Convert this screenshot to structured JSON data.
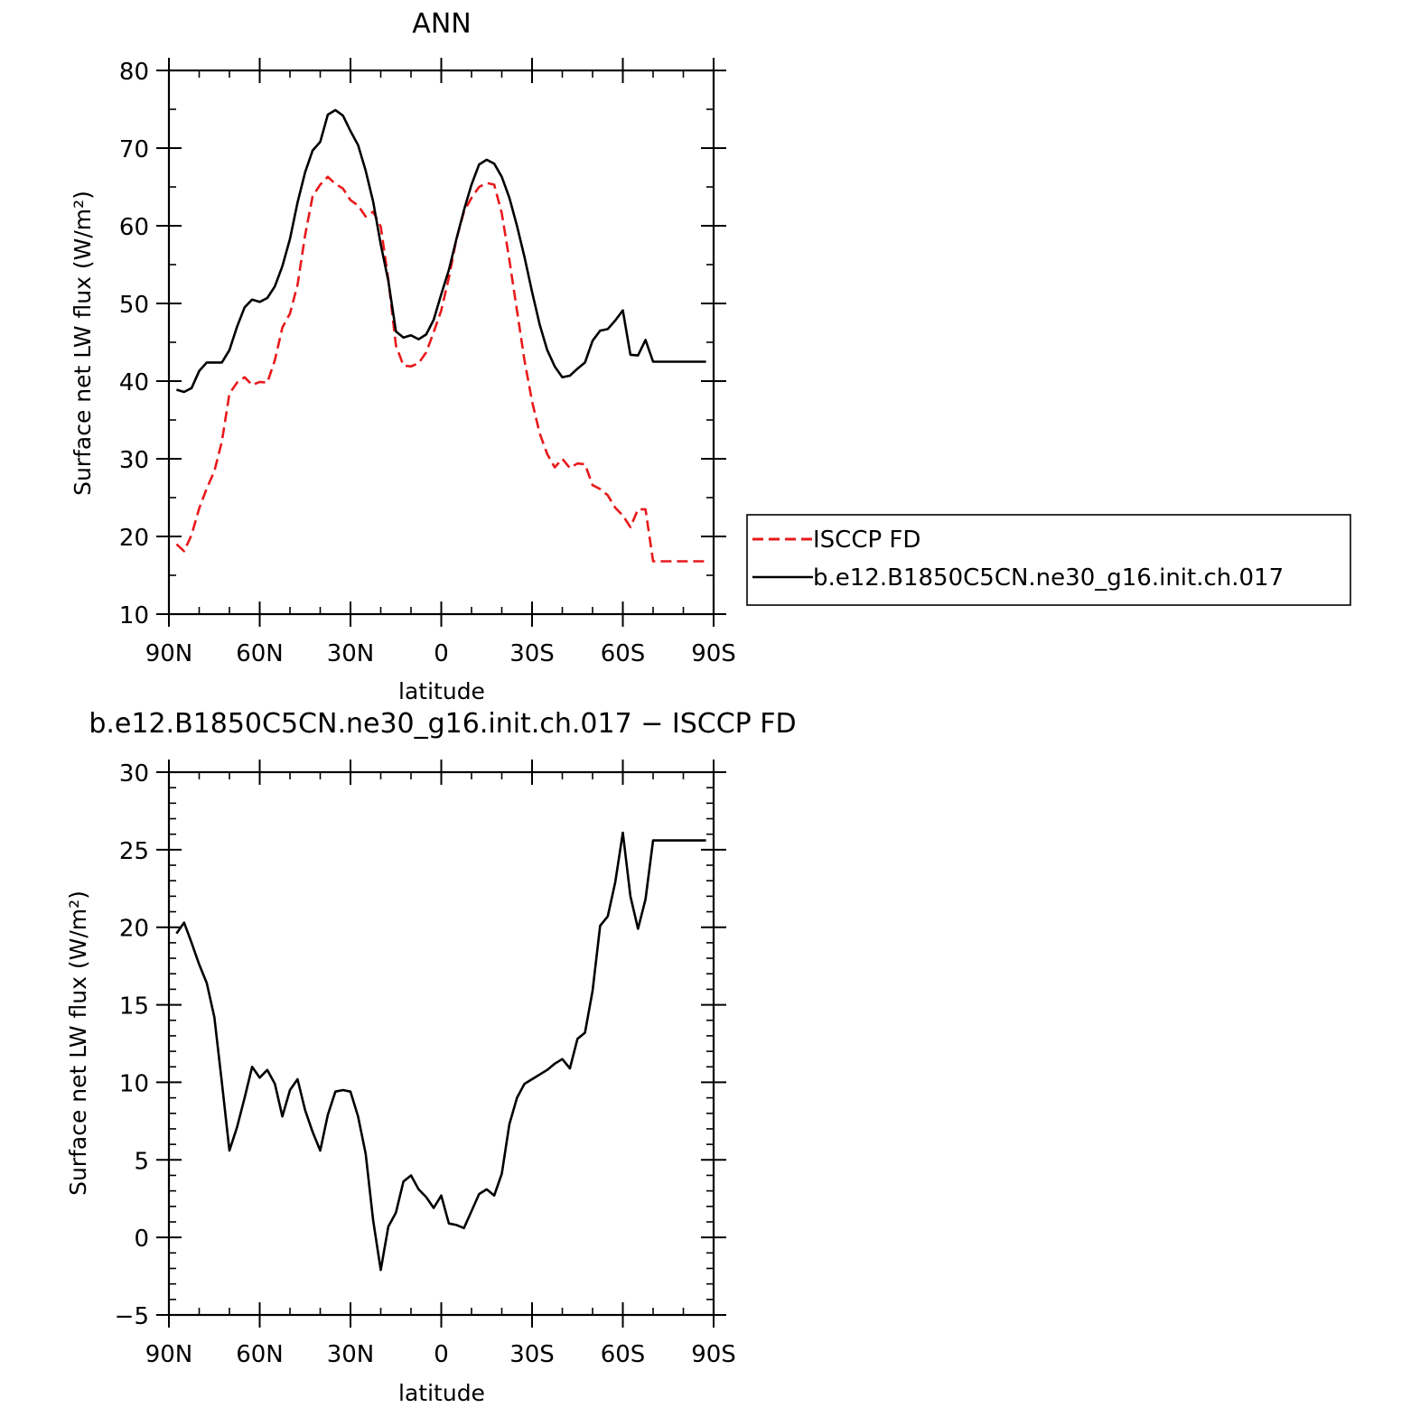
{
  "chart_data": [
    {
      "type": "line",
      "title": "ANN",
      "xlabel": "latitude",
      "ylabel": "Surface net LW flux (W/m²)",
      "ylim": [
        10,
        80
      ],
      "yticks": [
        "80",
        "70",
        "60",
        "50",
        "40",
        "30",
        "20",
        "10"
      ],
      "xlim": [
        90,
        -90
      ],
      "xticks": [
        "90N",
        "60N",
        "30N",
        "0",
        "30S",
        "60S",
        "90S"
      ],
      "legend": {
        "position": "right",
        "entries": [
          "ISCCP FD",
          "b.e12.B1850C5CN.ne30_g16.init.ch.017"
        ]
      },
      "series": [
        {
          "name": "ISCCP FD",
          "color": "#e8191b",
          "dashed": true,
          "x": [
            87.5,
            85,
            82.5,
            80,
            77.5,
            75,
            72.5,
            70,
            67.5,
            65,
            62.5,
            60,
            57.5,
            55,
            52.5,
            50,
            47.5,
            45,
            42.5,
            40,
            37.5,
            35,
            32.5,
            30,
            27.5,
            25,
            22.5,
            20,
            17.5,
            15,
            12.5,
            10,
            7.5,
            5,
            2.5,
            0,
            -2.5,
            -5,
            -7.5,
            -10,
            -12.5,
            -15,
            -17.5,
            -20,
            -22.5,
            -25,
            -27.5,
            -30,
            -32.5,
            -35,
            -37.5,
            -40,
            -42.5,
            -45,
            -47.5,
            -50,
            -52.5,
            -55,
            -57.5,
            -60,
            -62.5,
            -65,
            -67.5,
            -70,
            -72.5,
            -75,
            -77.5,
            -80,
            -82.5,
            -85,
            -87.5
          ],
          "y": [
            19.0,
            18.1,
            20.2,
            23.6,
            26.2,
            28.4,
            32.2,
            38.4,
            39.8,
            40.5,
            39.5,
            39.9,
            39.8,
            42.7,
            46.9,
            48.7,
            52.4,
            58.8,
            63.8,
            65.3,
            66.3,
            65.4,
            64.8,
            63.3,
            62.6,
            61.2,
            61.8,
            59.9,
            53.1,
            44.6,
            42.0,
            41.9,
            42.3,
            43.7,
            46.3,
            49.1,
            53.3,
            58.3,
            61.8,
            63.6,
            65.0,
            65.5,
            65.3,
            61.6,
            55.6,
            49.1,
            42.7,
            37.4,
            33.3,
            30.6,
            28.9,
            30.0,
            28.8,
            29.4,
            29.3,
            26.6,
            26.1,
            25.3,
            23.7,
            22.7,
            21.2,
            23.5,
            23.5,
            16.8,
            16.8,
            16.8,
            16.8,
            16.8,
            16.8,
            16.8,
            16.8
          ]
        },
        {
          "name": "b.e12.B1850C5CN.ne30_g16.init.ch.017",
          "color": "#000000",
          "dashed": false,
          "x": [
            87.5,
            85,
            82.5,
            80,
            77.5,
            75,
            72.5,
            70,
            67.5,
            65,
            62.5,
            60,
            57.5,
            55,
            52.5,
            50,
            47.5,
            45,
            42.5,
            40,
            37.5,
            35,
            32.5,
            30,
            27.5,
            25,
            22.5,
            20,
            17.5,
            15,
            12.5,
            10,
            7.5,
            5,
            2.5,
            0,
            -2.5,
            -5,
            -7.5,
            -10,
            -12.5,
            -15,
            -17.5,
            -20,
            -22.5,
            -25,
            -27.5,
            -30,
            -32.5,
            -35,
            -37.5,
            -40,
            -42.5,
            -45,
            -47.5,
            -50,
            -52.5,
            -55,
            -57.5,
            -60,
            -62.5,
            -65,
            -67.5,
            -70,
            -72.5,
            -75,
            -77.5,
            -80,
            -82.5,
            -85,
            -87.5
          ],
          "y": [
            38.9,
            38.6,
            39.1,
            41.3,
            42.4,
            42.4,
            42.4,
            44.0,
            47.0,
            49.5,
            50.5,
            50.2,
            50.7,
            52.2,
            54.8,
            58.3,
            63.0,
            66.9,
            69.7,
            70.8,
            74.3,
            74.9,
            74.2,
            72.2,
            70.4,
            67.1,
            63.1,
            57.6,
            52.9,
            46.4,
            45.6,
            45.9,
            45.4,
            46.0,
            47.9,
            51.2,
            54.3,
            58.3,
            62.0,
            65.3,
            67.9,
            68.5,
            68.0,
            66.3,
            63.6,
            60.0,
            56.0,
            51.5,
            47.3,
            44.0,
            41.9,
            40.5,
            40.7,
            41.6,
            42.4,
            45.2,
            46.5,
            46.7,
            47.8,
            49.1,
            43.4,
            43.3,
            45.3,
            42.5,
            42.5,
            42.5,
            42.5,
            42.5,
            42.5,
            42.5,
            42.5
          ]
        }
      ]
    },
    {
      "type": "line",
      "title": "b.e12.B1850C5CN.ne30_g16.init.ch.017 − ISCCP FD",
      "xlabel": "latitude",
      "ylabel": "Surface net LW flux (W/m²)",
      "ylim": [
        -5,
        30
      ],
      "yticks": [
        "30",
        "25",
        "20",
        "15",
        "10",
        "5",
        "0",
        "−5"
      ],
      "xlim": [
        90,
        -90
      ],
      "xticks": [
        "90N",
        "60N",
        "30N",
        "0",
        "30S",
        "60S",
        "90S"
      ],
      "series": [
        {
          "color": "#000000",
          "dashed": false,
          "x": [
            87.5,
            85,
            82.5,
            80,
            77.5,
            75,
            72.5,
            70,
            67.5,
            65,
            62.5,
            60,
            57.5,
            55,
            52.5,
            50,
            47.5,
            45,
            42.5,
            40,
            37.5,
            35,
            32.5,
            30,
            27.5,
            25,
            22.5,
            20,
            17.5,
            15,
            12.5,
            10,
            7.5,
            5,
            2.5,
            0,
            -2.5,
            -5,
            -7.5,
            -10,
            -12.5,
            -15,
            -17.5,
            -20,
            -22.5,
            -25,
            -27.5,
            -30,
            -32.5,
            -35,
            -37.5,
            -40,
            -42.5,
            -45,
            -47.5,
            -50,
            -52.5,
            -55,
            -57.5,
            -60,
            -62.5,
            -65,
            -67.5,
            -70,
            -72.5,
            -75,
            -77.5,
            -80,
            -82.5,
            -85,
            -87.5
          ],
          "y": [
            19.6,
            20.3,
            19.0,
            17.6,
            16.4,
            14.2,
            10.0,
            5.6,
            7.1,
            9.0,
            11.0,
            10.3,
            10.8,
            9.9,
            7.8,
            9.5,
            10.2,
            8.2,
            6.8,
            5.6,
            7.9,
            9.4,
            9.5,
            9.4,
            7.8,
            5.4,
            1.1,
            -2.1,
            0.7,
            1.6,
            3.6,
            4.0,
            3.1,
            2.6,
            1.9,
            2.7,
            0.9,
            0.8,
            0.6,
            1.7,
            2.8,
            3.1,
            2.7,
            4.1,
            7.3,
            9.0,
            9.9,
            10.2,
            10.5,
            10.8,
            11.2,
            11.5,
            10.9,
            12.8,
            13.2,
            15.9,
            20.1,
            20.7,
            22.9,
            26.1,
            22.0,
            19.9,
            21.8,
            25.6,
            25.6,
            25.6,
            25.6,
            25.6,
            25.6,
            25.6,
            25.6
          ]
        }
      ]
    }
  ]
}
